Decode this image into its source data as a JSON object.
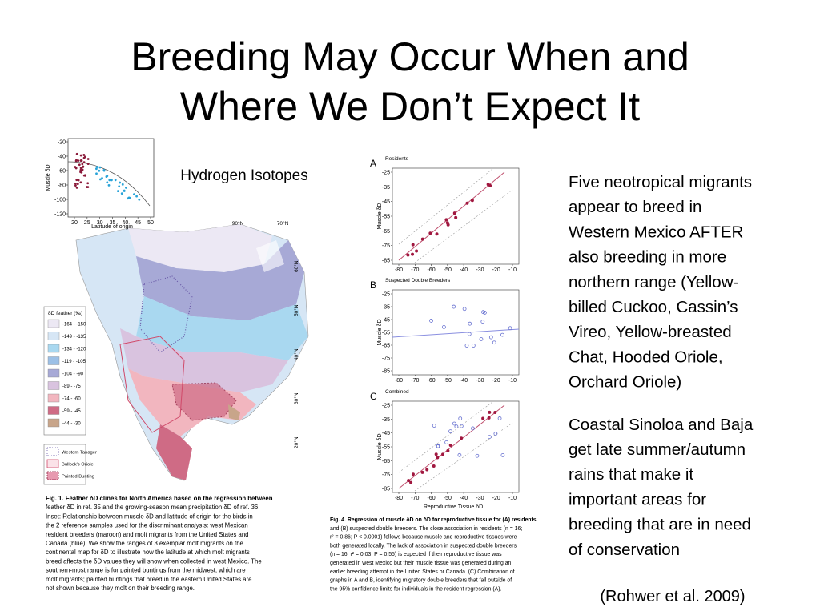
{
  "title": [
    "Breeding May Occur When and",
    "Where We Don’t Expect It"
  ],
  "figure_label": "Hydrogen Isotopes",
  "paragraphs": [
    [
      "Five neotropical migrants",
      "appear to breed in",
      "Western Mexico AFTER",
      "also breeding in more",
      "northern range (Yellow-",
      "billed Cuckoo, Cassin’s",
      "Vireo, Yellow-breasted",
      "Chat, Hooded Oriole,",
      "Orchard Oriole)"
    ],
    [
      "Coastal Sinoloa and Baja",
      "get late summer/autumn",
      "rains that make it",
      "important areas for",
      "breeding that are in need",
      "of conservation"
    ]
  ],
  "citation": "(Rohwer et al. 2009)",
  "figure1": {
    "inset": {
      "ylabel": "Muscle δD",
      "xlabel": "Latitude of origin",
      "yticks": [
        -20,
        -40,
        -60,
        -80,
        -100,
        -120
      ],
      "xticks": [
        20,
        25,
        30,
        35,
        40,
        45,
        50
      ]
    },
    "longitudes": [
      "90°N",
      "70°N"
    ],
    "latitudes": [
      "60°N",
      "50°N",
      "40°N",
      "30°N",
      "20°N"
    ],
    "legend_title": "δD feather (‰)",
    "legend": [
      {
        "label": "-164 - -150",
        "color": "#ece8f4"
      },
      {
        "label": "-149 - -135",
        "color": "#d6e6f5"
      },
      {
        "label": "-134 - -120",
        "color": "#a9d8f0"
      },
      {
        "label": "-119 - -105",
        "color": "#9cc0e6"
      },
      {
        "label": "-104 - -90",
        "color": "#a7a9d6"
      },
      {
        "label": "-89 - -75",
        "color": "#d9c3df"
      },
      {
        "label": "-74 - -60",
        "color": "#f2b6bf"
      },
      {
        "label": "-59 - -45",
        "color": "#cf6b85"
      },
      {
        "label": "-44 - -30",
        "color": "#c8a58a"
      }
    ],
    "ranges": [
      "Western Tanager",
      "Bullock's Oriole",
      "Painted Bunting"
    ],
    "caption": [
      "Fig. 1.   Feather δD clines for North America based on the regression between",
      "feather δD in ref. 35 and the growing-season mean precipitation δD of ref. 36.",
      "Inset: Relationship between muscle δD and latitude of origin for the birds in",
      "the 2 reference samples used for the discriminant analysis: west Mexican",
      "resident breeders (maroon) and molt migrants from the United States and",
      "Canada (blue). We show the ranges of 3 exemplar molt migrants on the",
      "continental map for δD to illustrate how the latitude at which molt migrants",
      "breed affects the δD values they will show when collected in west Mexico. The",
      "southern-most range is for painted buntings from the midwest, which are",
      "molt migrants; painted buntings that breed in the eastern United States are",
      "not shown because they molt on their breeding range."
    ]
  },
  "figure4": {
    "panels": [
      {
        "letter": "A",
        "title": "Residents"
      },
      {
        "letter": "B",
        "title": "Suspected Double Breeders"
      },
      {
        "letter": "C",
        "title": "Combined"
      }
    ],
    "ylabel": "Muscle δD",
    "xlabel": "Reproductive Tissue  δD",
    "yticks": [
      -25,
      -35,
      -45,
      -55,
      -65,
      -75,
      -85
    ],
    "xticks": [
      -80,
      -70,
      -60,
      -50,
      -40,
      -30,
      -20,
      -10
    ],
    "caption": [
      "Fig. 4.   Regression of muscle δD on δD for reproductive tissue for (A) residents",
      "and (B) suspected double breeders. The close association in residents (n = 16;",
      "r² = 0.86; P < 0.0001) follows because muscle and reproductive tissues were",
      "both generated locally. The lack of association in suspected double breeders",
      "(n = 16; r² = 0.03; P = 0.55) is expected if their reproductive tissue was",
      "generated in west Mexico but their muscle tissue was generated during an",
      "earlier breeding attempt in the United States or Canada. (C) Combination of",
      "graphs in A and B, identifying migratory double breeders that fall outside of",
      "the 95% confidence limits for individuals in the resident regression (A)."
    ]
  }
}
